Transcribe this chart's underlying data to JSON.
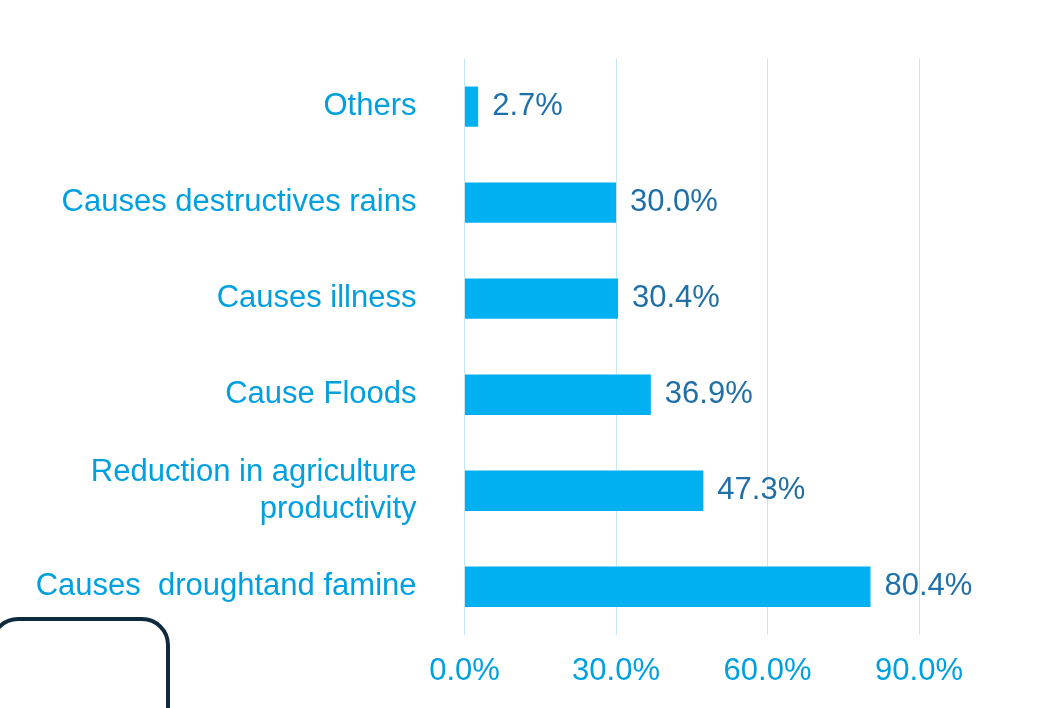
{
  "chart_data": {
    "type": "bar",
    "orientation": "horizontal",
    "categories": [
      "Others",
      "Causes destructives rains",
      "Causes illness",
      "Cause Floods",
      "Reduction in agriculture productivity",
      "Causes  droughtand famine"
    ],
    "values": [
      2.7,
      30.0,
      30.4,
      36.9,
      47.3,
      80.4
    ],
    "value_labels": [
      "2.7%",
      "30.0%",
      "30.4%",
      "36.9%",
      "47.3%",
      "80.4%"
    ],
    "color": "#00b0f0",
    "xlim": [
      0,
      90
    ],
    "xticks": [
      {
        "value": 0,
        "label": "0.0%"
      },
      {
        "value": 30,
        "label": "30.0%"
      },
      {
        "value": 60,
        "label": "60.0%"
      },
      {
        "value": 90,
        "label": "90.0%"
      }
    ],
    "grid": "x",
    "legend": false
  }
}
